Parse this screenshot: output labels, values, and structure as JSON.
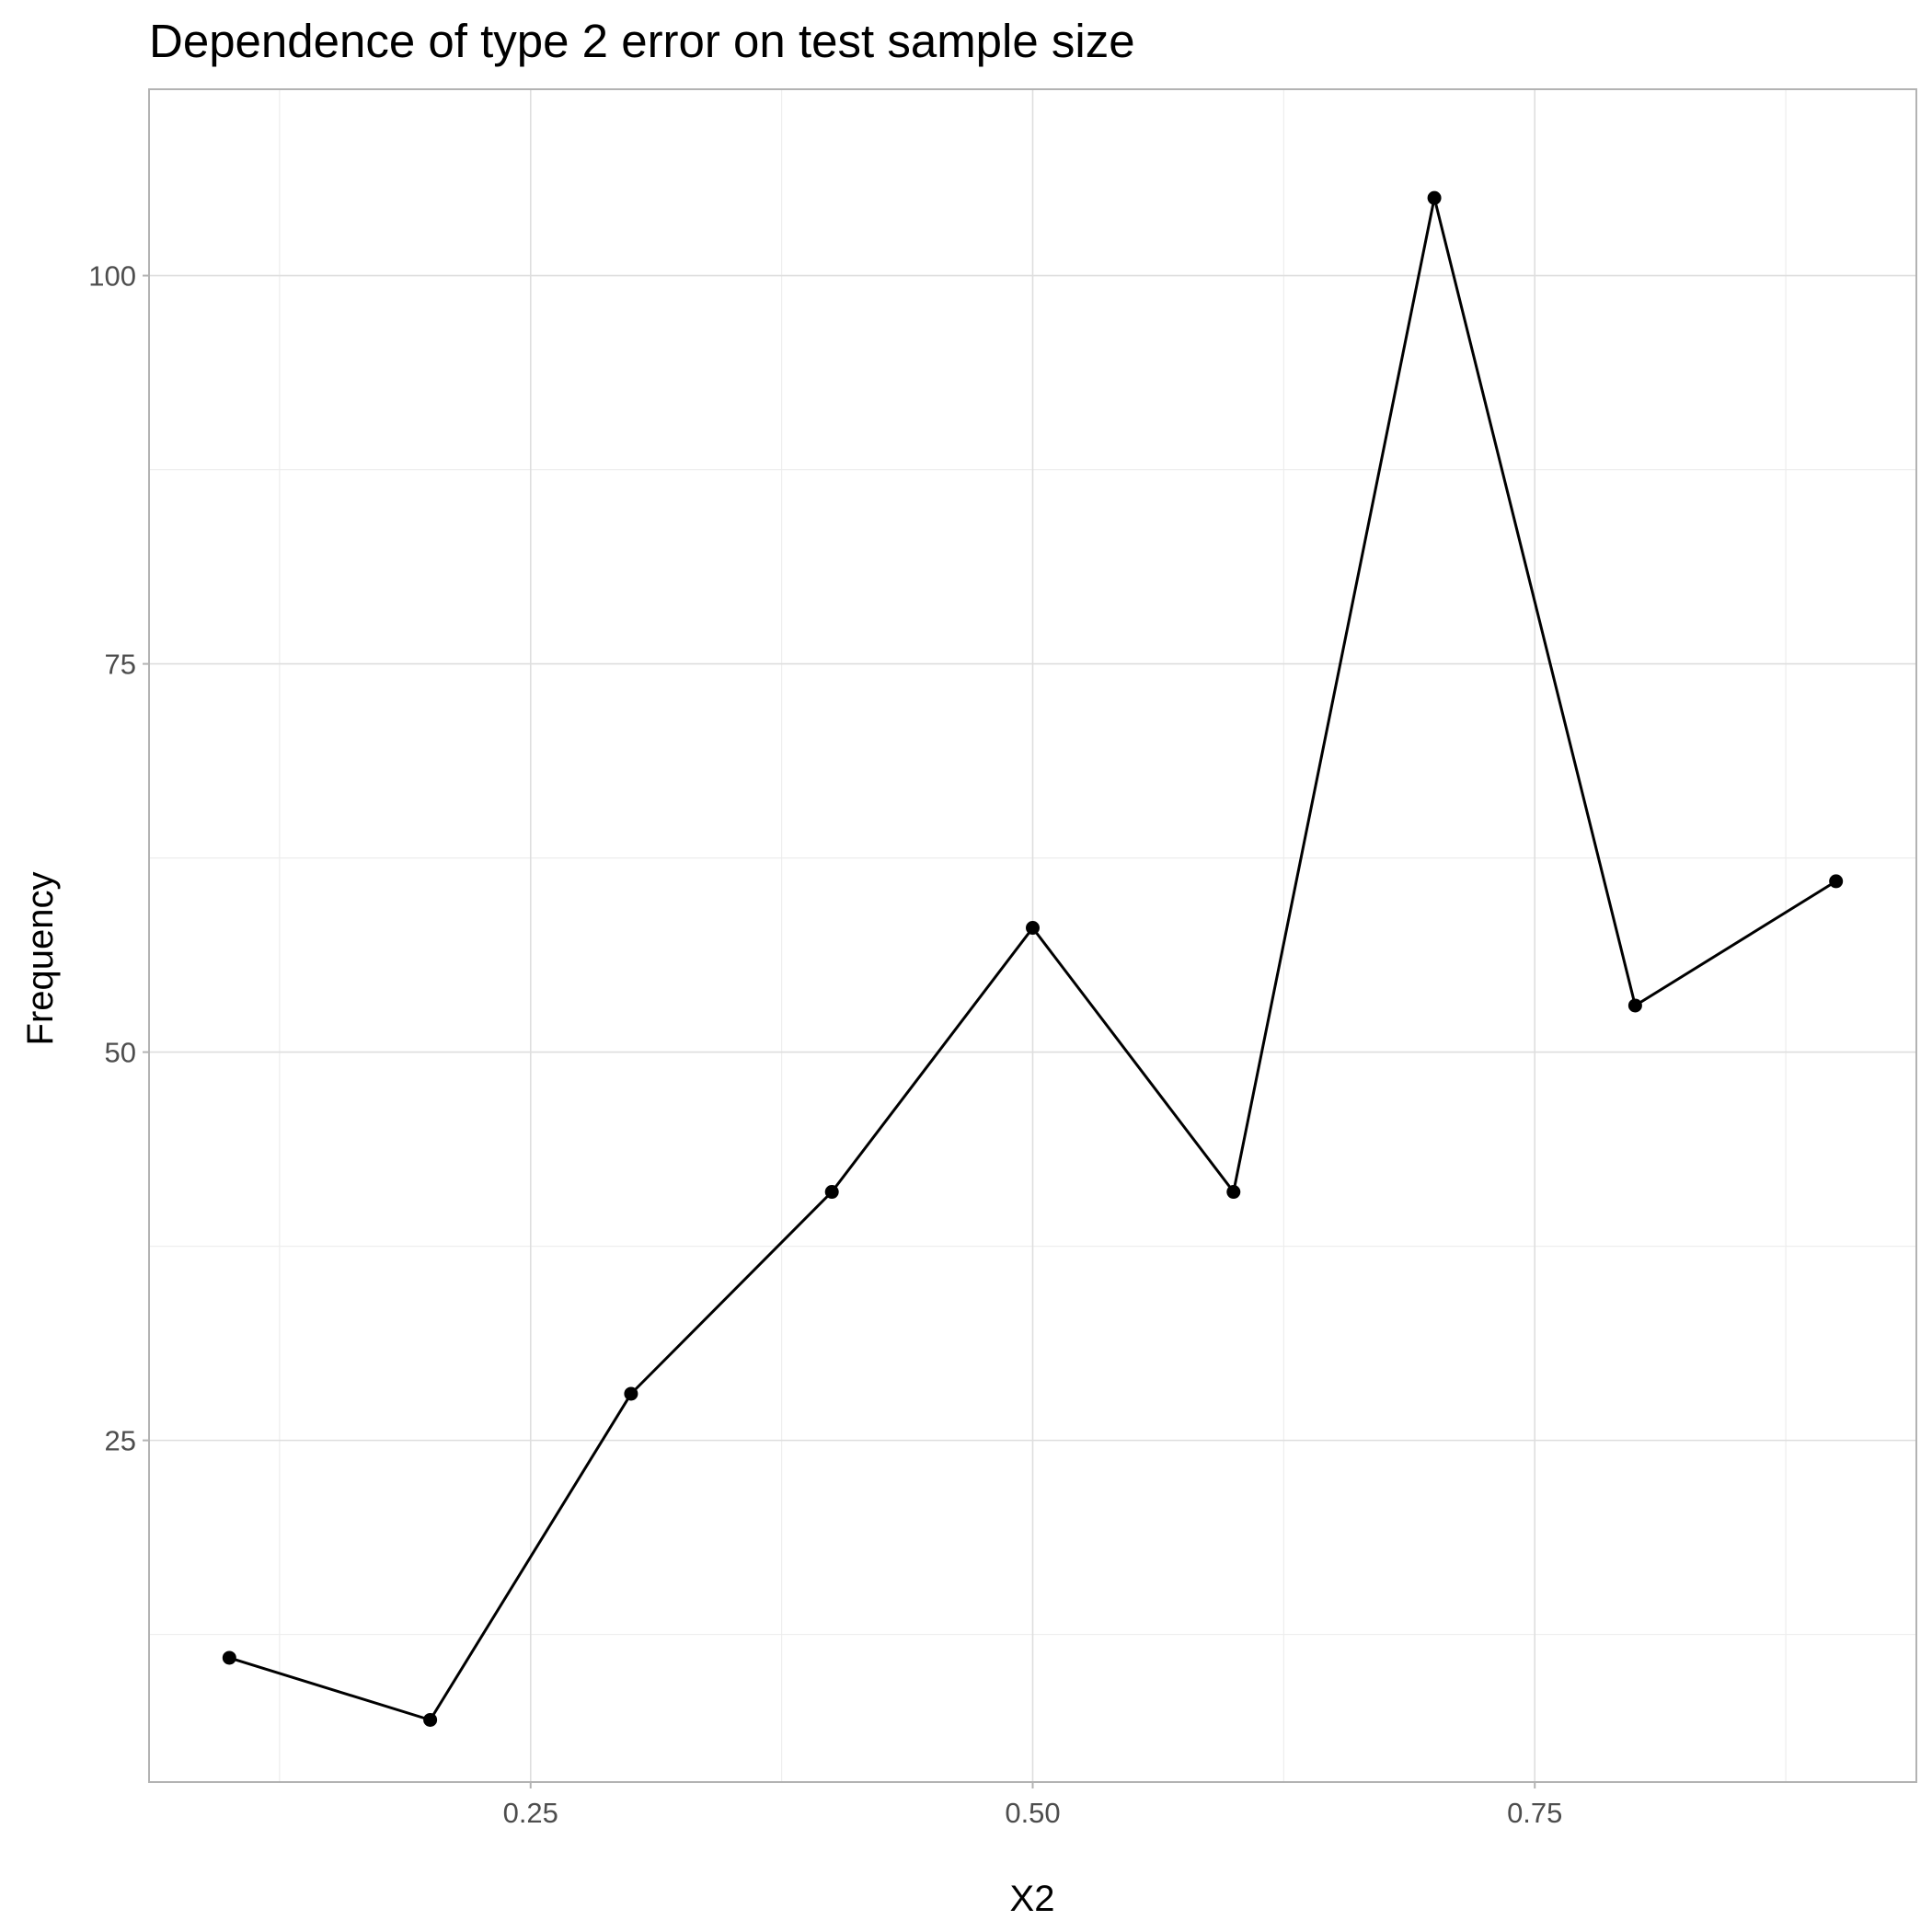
{
  "chart_data": {
    "type": "line",
    "title": "Dependence of type 2 error on test sample size",
    "xlabel": "X2",
    "ylabel": "Frequency",
    "xlim": [
      0.06,
      0.94
    ],
    "ylim": [
      3,
      112
    ],
    "x_ticks": [
      {
        "value": 0.25,
        "label": "0.25"
      },
      {
        "value": 0.5,
        "label": "0.50"
      },
      {
        "value": 0.75,
        "label": "0.75"
      }
    ],
    "x_minor": [
      0.125,
      0.375,
      0.625,
      0.875
    ],
    "y_ticks": [
      {
        "value": 25,
        "label": "25"
      },
      {
        "value": 50,
        "label": "50"
      },
      {
        "value": 75,
        "label": "75"
      },
      {
        "value": 100,
        "label": "100"
      }
    ],
    "y_minor": [
      12.5,
      37.5,
      62.5,
      87.5
    ],
    "grid": true,
    "legend": "none",
    "series": [
      {
        "x": [
          0.1,
          0.2,
          0.3,
          0.4,
          0.5,
          0.6,
          0.7,
          0.8,
          0.9
        ],
        "y": [
          11,
          7,
          28,
          41,
          58,
          41,
          105,
          53,
          61
        ]
      }
    ],
    "colors": {
      "line": "#000000",
      "point": "#000000",
      "grid": "#dedede",
      "panel_border": "#b3b3b3"
    }
  }
}
